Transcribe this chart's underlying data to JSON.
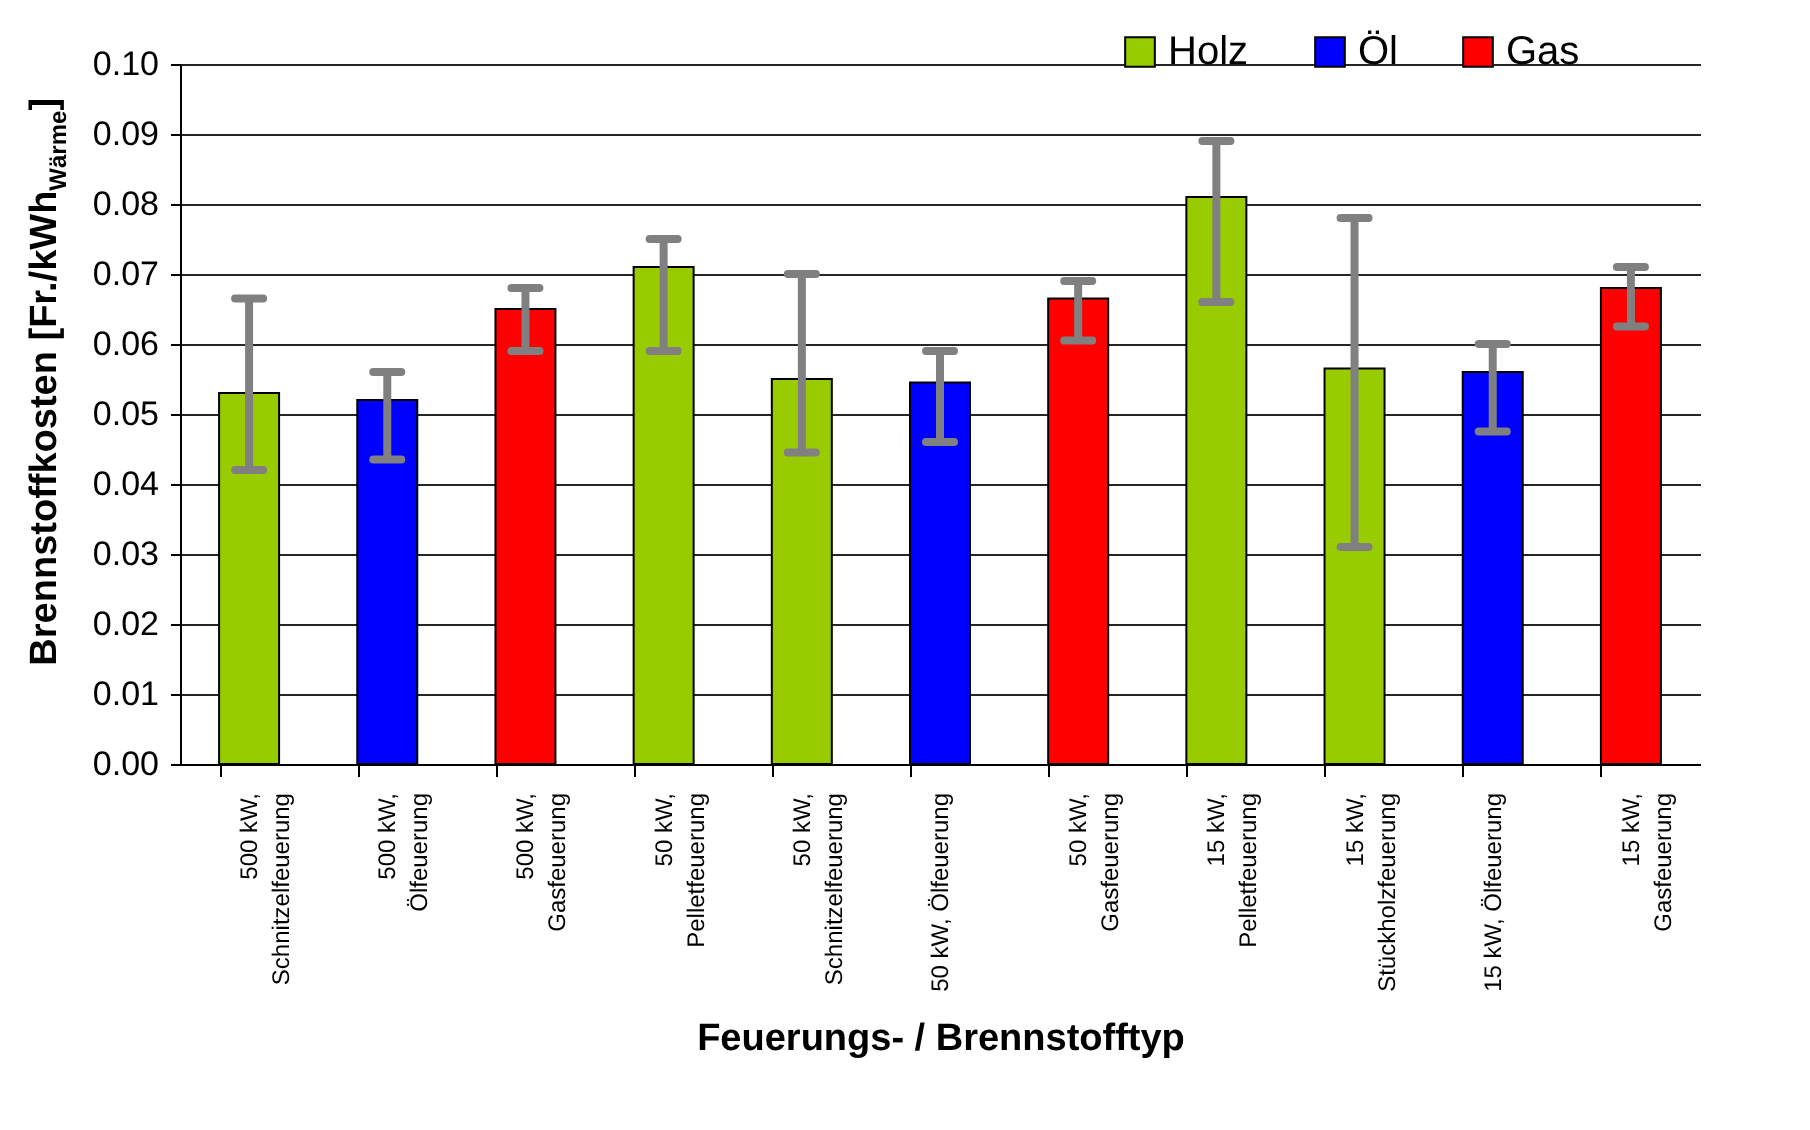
{
  "chart_data": {
    "type": "bar",
    "xlabel": "Feuerungs- / Brennstofftyp",
    "ylabel": "Brennstoffkosten [Fr./kWh$_{Wärme}$]",
    "categories": [
      "500 kW,\nSchnitzelfeuerung",
      "500 kW,\nÖlfeuerung",
      "500 kW,\nGasfeuerung",
      "50 kW,\nPelletfeuerung",
      "50 kW,\nSchnitzelfeuerung",
      "50 kW, Ölfeuerung",
      "50 kW,\nGasfeuerung",
      "15 kW,\nPelletfeuerung",
      "15 kW,\nStückholzfeuerung",
      "15 kW, Ölfeuerung",
      "15 kW,\nGasfeuerung"
    ],
    "series": [
      {
        "name": "Holz",
        "color": "#99cc00",
        "values": [
          0.053,
          null,
          null,
          0.071,
          0.055,
          null,
          null,
          0.081,
          0.0565,
          null,
          null
        ],
        "errors": [
          [
            0.042,
            0.0665
          ],
          null,
          null,
          [
            0.059,
            0.075
          ],
          [
            0.0445,
            0.07
          ],
          null,
          null,
          [
            0.066,
            0.089
          ],
          [
            0.031,
            0.078
          ],
          null,
          null
        ]
      },
      {
        "name": "Öl",
        "color": "#0000ff",
        "values": [
          null,
          0.052,
          null,
          null,
          null,
          0.0545,
          null,
          null,
          null,
          0.056,
          null
        ],
        "errors": [
          null,
          [
            0.0435,
            0.056
          ],
          null,
          null,
          null,
          [
            0.046,
            0.059
          ],
          null,
          null,
          null,
          [
            0.0475,
            0.06
          ],
          null
        ]
      },
      {
        "name": "Gas",
        "color": "#ff0000",
        "values": [
          null,
          null,
          0.065,
          null,
          null,
          null,
          0.0665,
          null,
          null,
          null,
          0.068
        ],
        "errors": [
          null,
          null,
          [
            0.059,
            0.068
          ],
          null,
          null,
          null,
          [
            0.0605,
            0.069
          ],
          null,
          null,
          null,
          [
            0.0625,
            0.071
          ]
        ]
      }
    ],
    "ylim": [
      0,
      0.1
    ],
    "yticks": [
      {
        "value": 0,
        "label": "0.00"
      },
      {
        "value": 0.01,
        "label": "0.01"
      },
      {
        "value": 0.02,
        "label": "0.02"
      },
      {
        "value": 0.03,
        "label": "0.03"
      },
      {
        "value": 0.04,
        "label": "0.04"
      },
      {
        "value": 0.05,
        "label": "0.05"
      },
      {
        "value": 0.06,
        "label": "0.06"
      },
      {
        "value": 0.07,
        "label": "0.07"
      },
      {
        "value": 0.08,
        "label": "0.08"
      },
      {
        "value": 0.09,
        "label": "0.09"
      },
      {
        "value": 0.1,
        "label": "0.10"
      }
    ],
    "grid": "y",
    "legend": "top right"
  }
}
